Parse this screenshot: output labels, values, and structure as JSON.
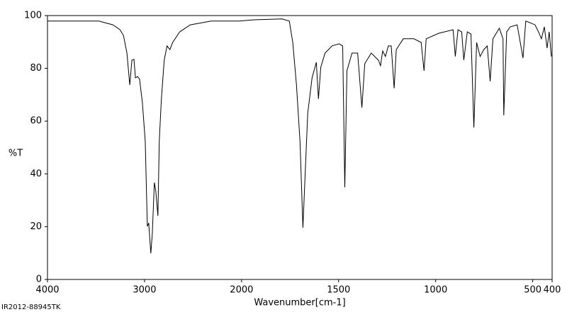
{
  "chart_data": {
    "type": "line",
    "y_label": "%T",
    "x_label": "Wavenumber[cm-1]",
    "footnote": "IR2012-88945TK",
    "color": "#000000",
    "xlim": [
      4000,
      400
    ],
    "xticks": [
      4000,
      3000,
      2000,
      1500,
      1000,
      500,
      400
    ],
    "x_scale_break": 2000,
    "x_scale_factor": 2,
    "ylim": [
      0,
      100
    ],
    "yticks": [
      0,
      20,
      40,
      60,
      80,
      100
    ],
    "x": [
      4000,
      3471,
      3326,
      3254,
      3217,
      3181,
      3152,
      3130,
      3109,
      3094,
      3072,
      3051,
      3022,
      2993,
      2971,
      2957,
      2935,
      2920,
      2899,
      2884,
      2862,
      2848,
      2826,
      2797,
      2768,
      2739,
      2710,
      2638,
      2529,
      2312,
      2022,
      1938,
      1791,
      1754,
      1736,
      1717,
      1699,
      1684,
      1673,
      1659,
      1637,
      1615,
      1604,
      1592,
      1570,
      1534,
      1497,
      1479,
      1468,
      1457,
      1431,
      1402,
      1380,
      1365,
      1332,
      1295,
      1284,
      1273,
      1259,
      1244,
      1229,
      1214,
      1203,
      1167,
      1112,
      1075,
      1060,
      1049,
      984,
      910,
      899,
      885,
      866,
      855,
      837,
      818,
      803,
      789,
      771,
      752,
      734,
      719,
      705,
      672,
      653,
      649,
      634,
      616,
      580,
      550,
      536,
      514,
      488,
      470,
      455,
      440,
      426,
      415,
      404
    ],
    "values": [
      97.9,
      97.9,
      96.5,
      94.7,
      92.5,
      85.8,
      73.7,
      83.1,
      83.4,
      76.4,
      76.9,
      75.9,
      67,
      52.5,
      20.1,
      21.4,
      9.9,
      17.4,
      36.7,
      33.5,
      24.1,
      52.3,
      68.4,
      83.1,
      88.5,
      87.1,
      89.8,
      93.8,
      96.5,
      97.9,
      97.9,
      98.4,
      98.7,
      97.9,
      89.8,
      73.7,
      52.3,
      19.6,
      38.9,
      63,
      76.4,
      82.3,
      68.4,
      80.4,
      85.8,
      88.5,
      89.3,
      88.5,
      34.9,
      79.1,
      85.8,
      85.8,
      65.1,
      81.8,
      85.8,
      83.1,
      81,
      86.6,
      84.5,
      88.5,
      88.5,
      72.4,
      87.1,
      91.2,
      91.2,
      89.8,
      79.1,
      91.2,
      93.3,
      94.6,
      84.5,
      94.6,
      93.8,
      83.1,
      93.8,
      93,
      57.6,
      89.8,
      84.5,
      87.1,
      88.5,
      75.1,
      91.2,
      95.2,
      91.2,
      62.2,
      93.8,
      95.7,
      96.5,
      83.9,
      97.9,
      97.3,
      96.5,
      93.8,
      91.2,
      95.7,
      87.7,
      93.8,
      84.5
    ]
  }
}
